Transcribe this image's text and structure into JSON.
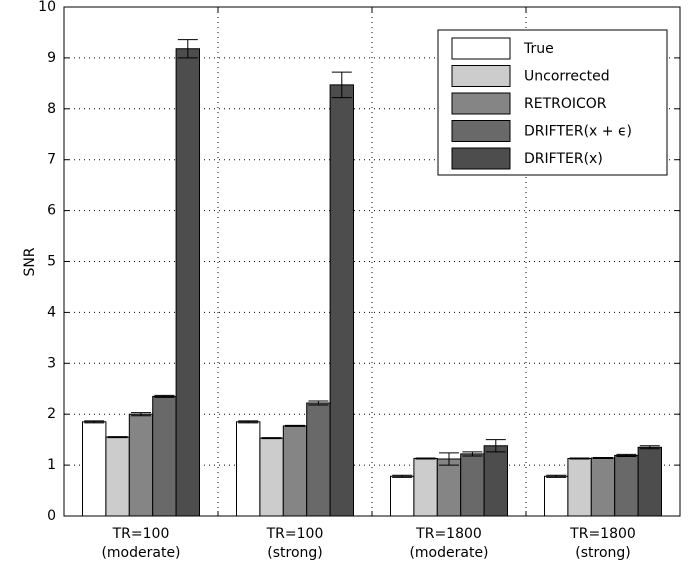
{
  "chart_data": {
    "type": "bar",
    "y_label": "SNR",
    "categories": [
      [
        "TR=100",
        "(moderate)"
      ],
      [
        "TR=100",
        "(strong)"
      ],
      [
        "TR=1800",
        "(moderate)"
      ],
      [
        "TR=1800",
        "(strong)"
      ]
    ],
    "series": [
      {
        "name": "True",
        "color": "#ffffff",
        "values": [
          1.85,
          1.85,
          0.78,
          0.78
        ],
        "errors": [
          0.02,
          0.02,
          0.02,
          0.02
        ]
      },
      {
        "name": "Uncorrected",
        "color": "#cccccc",
        "values": [
          1.55,
          1.53,
          1.13,
          1.13
        ],
        "errors": [
          0.01,
          0.01,
          0.01,
          0.01
        ]
      },
      {
        "name": "RETROICOR",
        "color": "#858585",
        "values": [
          2.0,
          1.77,
          1.12,
          1.14
        ],
        "errors": [
          0.03,
          0.01,
          0.12,
          0.01
        ]
      },
      {
        "name": "DRIFTER(x + ϵ)",
        "color": "#696969",
        "values": [
          2.35,
          2.22,
          1.22,
          1.19
        ],
        "errors": [
          0.02,
          0.04,
          0.04,
          0.02
        ]
      },
      {
        "name": "DRIFTER(x)",
        "color": "#4d4d4d",
        "values": [
          9.18,
          8.47,
          1.38,
          1.35
        ],
        "errors": [
          0.18,
          0.25,
          0.12,
          0.03
        ]
      }
    ],
    "ylim": [
      0,
      10
    ],
    "yticks": [
      0,
      1,
      2,
      3,
      4,
      5,
      6,
      7,
      8,
      9,
      10
    ],
    "grid": true,
    "legend": "upper right"
  }
}
